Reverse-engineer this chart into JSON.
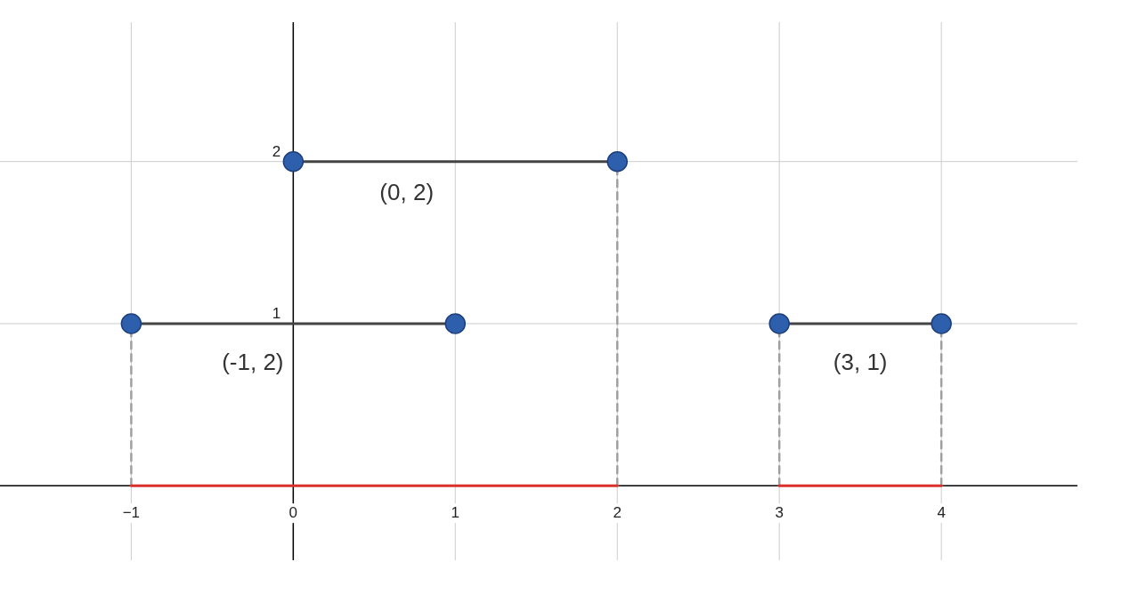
{
  "chart_data": {
    "type": "line",
    "xlim": [
      -1.81,
      4.84
    ],
    "ylim": [
      -0.46,
      2.86
    ],
    "xticks": [
      {
        "value": -1,
        "label": "−1"
      },
      0,
      1,
      2,
      3,
      4
    ],
    "yticks": [
      1,
      2
    ],
    "grid": true,
    "series": [
      {
        "color": "#444444",
        "x": [
          0,
          2
        ],
        "values": [
          2,
          2
        ],
        "marker": "circle"
      },
      {
        "color": "#444444",
        "x": [
          -1,
          1
        ],
        "values": [
          1,
          1
        ],
        "marker": "circle"
      },
      {
        "color": "#444444",
        "x": [
          3,
          4
        ],
        "values": [
          1,
          1
        ],
        "marker": "circle"
      },
      {
        "color": "#a0a0a0",
        "x": [
          -1,
          -1
        ],
        "values": [
          0,
          1
        ],
        "marker": "none",
        "line_style": "dashed"
      },
      {
        "color": "#a0a0a0",
        "x": [
          2,
          2
        ],
        "values": [
          0,
          2
        ],
        "marker": "none",
        "line_style": "dashed"
      },
      {
        "color": "#a0a0a0",
        "x": [
          3,
          3
        ],
        "values": [
          0,
          1
        ],
        "marker": "none",
        "line_style": "dashed"
      },
      {
        "color": "#a0a0a0",
        "x": [
          4,
          4
        ],
        "values": [
          0,
          1
        ],
        "marker": "none",
        "line_style": "dashed"
      },
      {
        "color": "#d9312b",
        "x": [
          -1,
          2
        ],
        "values": [
          0,
          0
        ],
        "marker": "none"
      },
      {
        "color": "#d9312b",
        "x": [
          3,
          4
        ],
        "values": [
          0,
          0
        ],
        "marker": "none"
      }
    ],
    "annotations": [
      "(0, 2)",
      "(-1, 2)",
      "(3, 1)"
    ]
  }
}
